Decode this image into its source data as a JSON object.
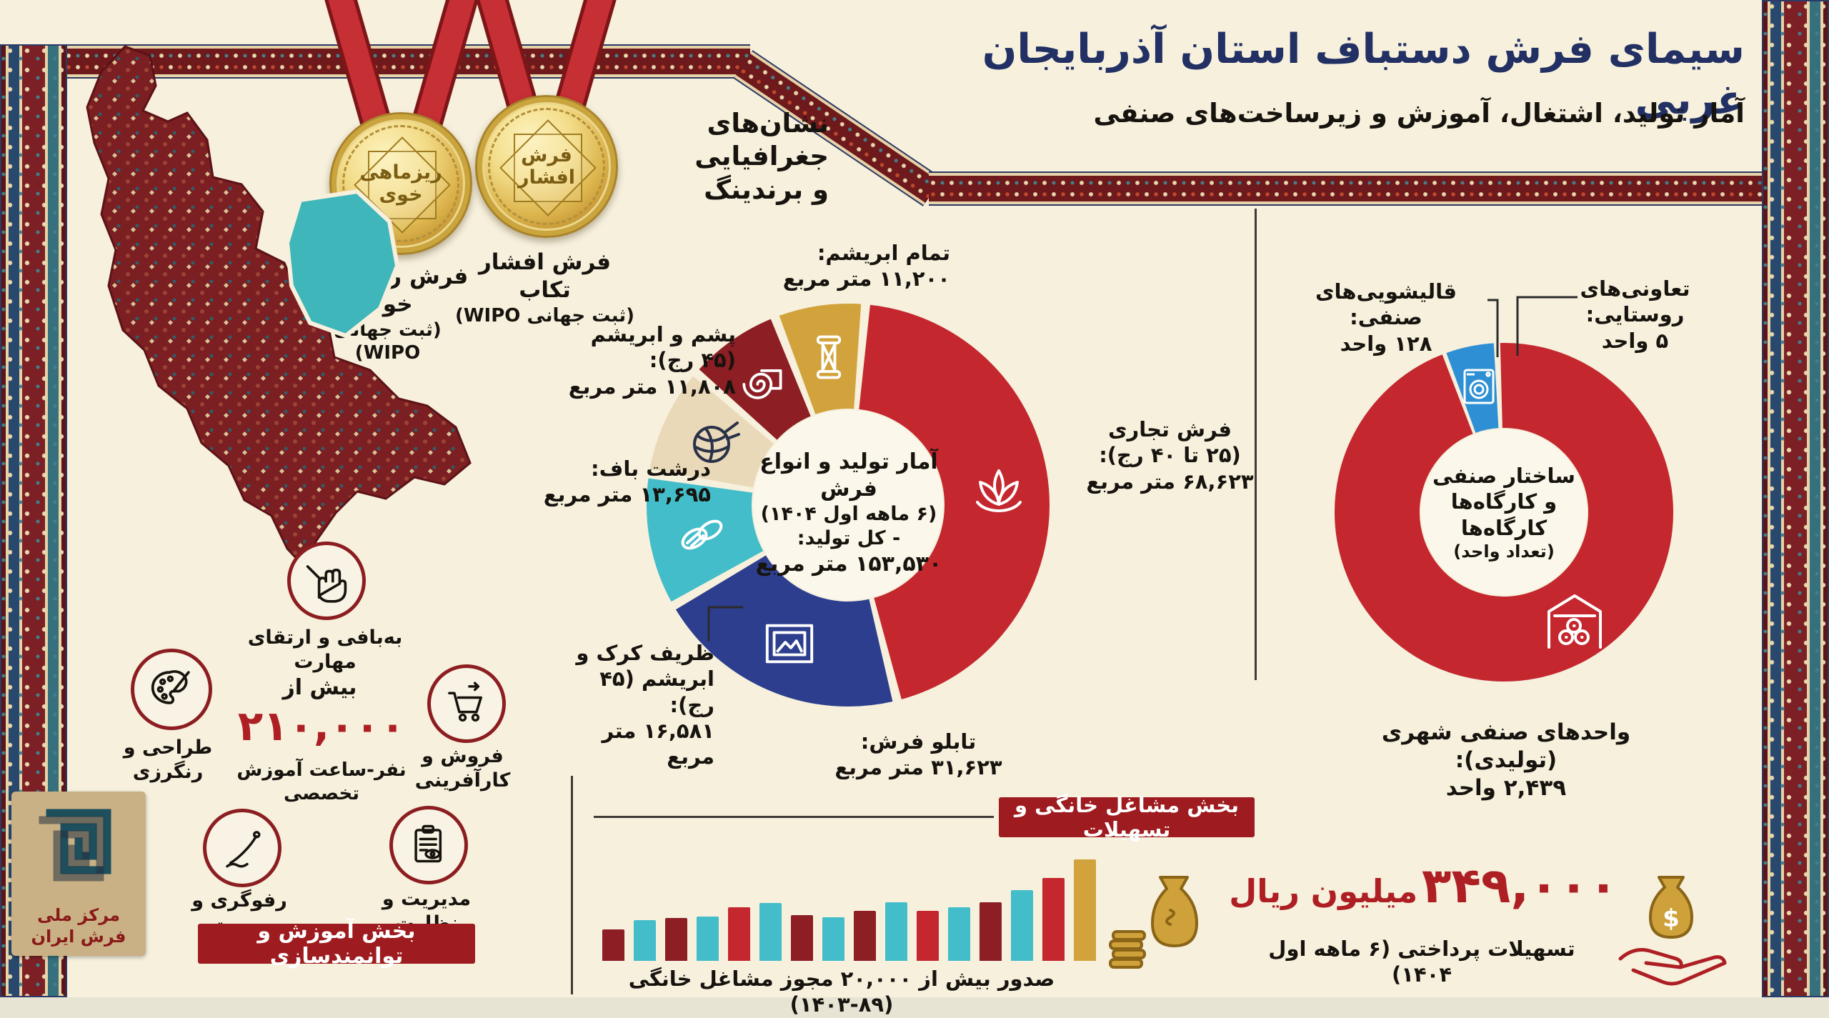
{
  "header": {
    "title": "سیمای فرش دستباف استان آذربایجان غربی",
    "subtitle": "آمار تولید، اشتغال، آموزش و زیرساخت‌های صنفی"
  },
  "branding": {
    "heading_lines": [
      "نشان‌های",
      "جغرافیایی",
      "و برندینگ"
    ],
    "medals": [
      {
        "inscription_lines": [
          "فرش",
          "افشار"
        ],
        "caption": "فرش افشار تکاب",
        "registration": "(ثبت جهانی WIPO)"
      },
      {
        "inscription_lines": [
          "ریزماهی",
          "خوی"
        ],
        "caption": "فرش ریزماهی خوی",
        "registration": "(ثبت جهانی WIPO)"
      }
    ]
  },
  "logo": {
    "caption": "مرکز ملی فرش ایران"
  },
  "chart_data": [
    {
      "id": "production",
      "type": "donut",
      "center_lines": [
        "آمار تولید و انواع فرش",
        "(۶ ماهه اول ۱۴۰۴)",
        "- کل تولید:",
        "۱۵۳,۵۳۰ متر مربع"
      ],
      "total_value": 153530,
      "unit": "متر مربع",
      "slices": [
        {
          "name": "فرش تجاری (۲۵ تا ۴۰ رج)",
          "label_lines": [
            "فرش تجاری",
            "(۲۵ تا ۴۰ رج):",
            "۶۸,۶۲۳ متر مربع"
          ],
          "value": 68623,
          "color": "#c4272e",
          "icon": "lotus-icon"
        },
        {
          "name": "تابلو فرش",
          "label_lines": [
            "تابلو فرش:",
            "۳۱,۶۲۳ متر مربع"
          ],
          "value": 31623,
          "color": "#2c3e8d",
          "icon": "picture-frame-icon"
        },
        {
          "name": "ظریف کرک و ابریشم (۴۵ رج)",
          "label_lines": [
            "ظریف کرک و",
            "ابریشم (۴۵ رج):",
            "۱۶,۵۸۱ متر مربع"
          ],
          "value": 16581,
          "color": "#43bdc9",
          "icon": "cocoon-icon"
        },
        {
          "name": "درشت باف",
          "label_lines": [
            "درشت باف:",
            "۱۳,۶۹۵ متر مربع"
          ],
          "value": 13695,
          "color": "#e9d9b8",
          "icon": "yarn-ball-icon"
        },
        {
          "name": "پشم و ابریشم (۴۵ رج)",
          "label_lines": [
            "پشم و ابریشم",
            "(۴۵ رج):",
            "۱۱,۸۰۸ متر مربع"
          ],
          "value": 11808,
          "color": "#8c1e24",
          "icon": "rolled-carpet-icon"
        },
        {
          "name": "تمام ابریشم",
          "label_lines": [
            "تمام ابریشم:",
            "۱۱,۲۰۰ متر مربع"
          ],
          "value": 11200,
          "color": "#d2a33c",
          "icon": "thread-spool-icon"
        }
      ]
    },
    {
      "id": "workshops",
      "type": "donut",
      "center_lines": [
        "ساختار صنفی",
        "و کارگاه‌ها",
        "کارگاه‌ها",
        "(تعداد واحد)"
      ],
      "unit": "واحد",
      "slices": [
        {
          "name": "واحدهای صنفی شهری (تولیدی)",
          "label_lines": [
            "واحدهای صنفی شهری (تولیدی):",
            "۲,۴۳۹ واحد"
          ],
          "value": 2439,
          "color": "#c4272e",
          "icon": "warehouse-icon"
        },
        {
          "name": "قالیشویی‌های صنفی",
          "label_lines": [
            "قالیشویی‌های صنفی:",
            "۱۲۸ واحد"
          ],
          "value": 128,
          "color": "#2e8fd4",
          "icon": "washing-machine-icon"
        },
        {
          "name": "تعاونی‌های روستایی",
          "label_lines": [
            "تعاونی‌های روستایی:",
            "۵ واحد"
          ],
          "value": 5,
          "color": "#2f9e44",
          "icon": null
        }
      ]
    },
    {
      "id": "home-permits",
      "type": "bar",
      "caption": "صدور بیش از ۲۰,۰۰۰ مجوز مشاغل خانگی (۸۹-۱۴۰۳)",
      "relative_heights": [
        31,
        40,
        42,
        44,
        53,
        57,
        45,
        43,
        49,
        58,
        49,
        53,
        58,
        70,
        82,
        100
      ],
      "colors": [
        "#8c1e24",
        "#43bdc9",
        "#8c1e24",
        "#43bdc9",
        "#c4272e",
        "#43bdc9",
        "#8c1e24",
        "#43bdc9",
        "#8c1e24",
        "#43bdc9",
        "#c4272e",
        "#43bdc9",
        "#8c1e24",
        "#43bdc9",
        "#c4272e",
        "#d2a33c"
      ]
    }
  ],
  "training": {
    "banner": "بخش آموزش و توانمندسازی",
    "stat": {
      "prefix": "بیش از",
      "value": "۲۱۰,۰۰۰",
      "suffix": "نفر-ساعت آموزش تخصصی"
    },
    "items": [
      {
        "icon": "weaving-hand-icon",
        "label_lines": [
          "به‌بافی و ارتقای مهارت"
        ]
      },
      {
        "icon": "palette-icon",
        "label_lines": [
          "طراحی و",
          "رنگرزی"
        ]
      },
      {
        "icon": "cart-icon",
        "label_lines": [
          "فروش و",
          "کارآفرینی"
        ]
      },
      {
        "icon": "needle-icon",
        "label_lines": [
          "رفوگری و مرمت"
        ]
      },
      {
        "icon": "clipboard-icon",
        "label_lines": [
          "مدیریت و نظارت"
        ]
      }
    ]
  },
  "home_business": {
    "banner": "بخش مشاغل خانگی و تسهیلات",
    "facility": {
      "value": "۳۴۹,۰۰۰",
      "unit": "میلیون ریال",
      "caption": "تسهیلات پرداختی (۶ ماهه اول ۱۴۰۴)"
    }
  },
  "colors": {
    "background": "#f6f0dd",
    "title": "#223064",
    "accent_red": "#ae1f24",
    "banner_red": "#9e1b1f",
    "gold": "#d2a33c",
    "teal": "#43bdc9",
    "navy": "#2c3e8d",
    "maroon": "#8c1e24",
    "blue": "#2e8fd4",
    "green": "#2f9e44"
  }
}
